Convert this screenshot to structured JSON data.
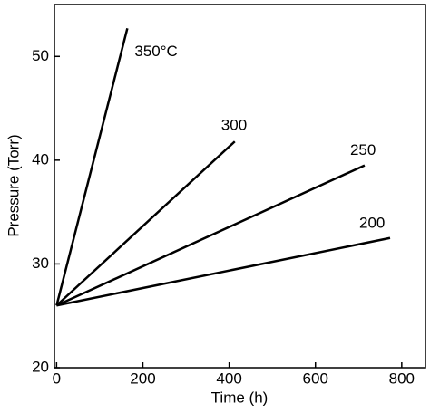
{
  "chart_data": {
    "type": "line",
    "xlabel": "Time (h)",
    "ylabel": "Pressure (Torr)",
    "series": [
      {
        "name": "350°C",
        "color": "#000000",
        "x": [
          0,
          164
        ],
        "values": [
          26,
          52.7
        ]
      },
      {
        "name": "300",
        "color": "#000000",
        "x": [
          0,
          413
        ],
        "values": [
          26,
          41.8
        ]
      },
      {
        "name": "250",
        "color": "#000000",
        "x": [
          0,
          714
        ],
        "values": [
          26,
          39.5
        ]
      },
      {
        "name": "200",
        "color": "#000000",
        "x": [
          0,
          773
        ],
        "values": [
          26,
          32.5
        ]
      }
    ],
    "xlim": [
      -5,
      855
    ],
    "xticks": [
      0,
      200,
      400,
      600,
      800
    ],
    "ylim": [
      20,
      55
    ],
    "yticks": [
      20,
      30,
      40,
      50
    ]
  }
}
